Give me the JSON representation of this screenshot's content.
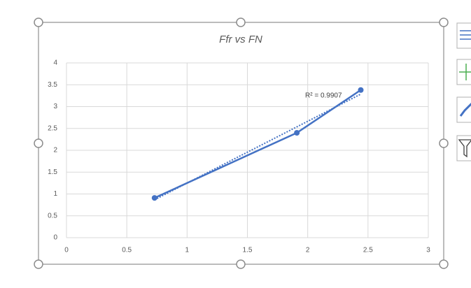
{
  "chart_data": {
    "type": "line",
    "title": "Ffr vs FN",
    "x": [
      0.73,
      1.91,
      2.44
    ],
    "series": [
      {
        "name": "Ffr",
        "color": "#4472c4",
        "values": [
          0.91,
          2.4,
          3.38
        ]
      }
    ],
    "trendline": "linear",
    "annotation": "R² = 0.9907",
    "xlim": [
      0,
      3
    ],
    "xticks": [
      0,
      0.5,
      1,
      1.5,
      2,
      2.5,
      3
    ],
    "ylim": [
      0,
      4
    ],
    "yticks": [
      0,
      0.5,
      1,
      1.5,
      2,
      2.5,
      3,
      3.5,
      4
    ],
    "grid": true
  }
}
